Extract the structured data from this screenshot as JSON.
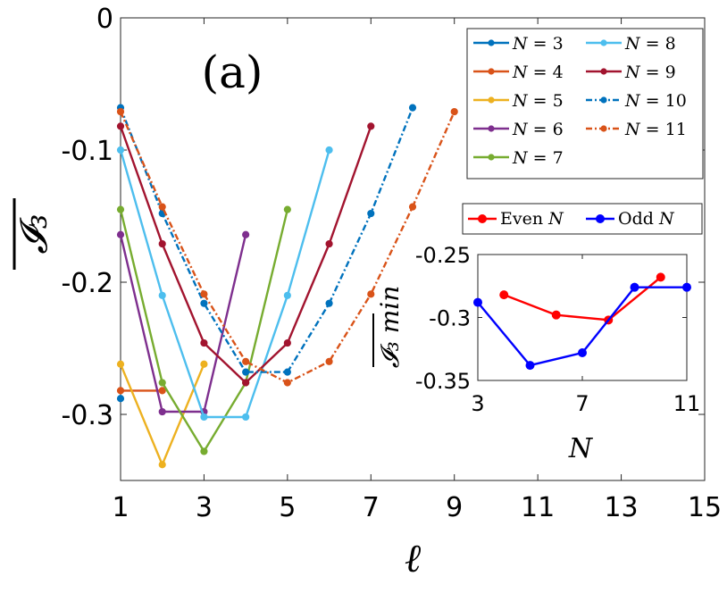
{
  "chart_data": [
    {
      "type": "line",
      "panel_label": "(a)",
      "xlabel": "ℓ",
      "ylabel": "𝓘₃",
      "xlim": [
        1,
        15
      ],
      "ylim": [
        -0.35,
        0
      ],
      "xticks": [
        1,
        3,
        5,
        7,
        9,
        11,
        13,
        15
      ],
      "xtick_labels": [
        "1",
        "3",
        "5",
        "7",
        "9",
        "11",
        "13",
        "15"
      ],
      "yticks": [
        0,
        -0.1,
        -0.2,
        -0.3
      ],
      "ytick_labels": [
        "0",
        "-0.1",
        "-0.2",
        "-0.3"
      ],
      "series": [
        {
          "name": "N = 3",
          "var": "N",
          "val": "3",
          "color": "#0072BD",
          "style": "solid",
          "x": [
            1
          ],
          "y": [
            -0.288
          ]
        },
        {
          "name": "N = 4",
          "var": "N",
          "val": "4",
          "color": "#D95319",
          "style": "solid",
          "x": [
            1,
            2
          ],
          "y": [
            -0.282,
            -0.282
          ]
        },
        {
          "name": "N = 5",
          "var": "N",
          "val": "5",
          "color": "#EDB120",
          "style": "solid",
          "x": [
            1,
            2,
            3
          ],
          "y": [
            -0.262,
            -0.338,
            -0.262
          ]
        },
        {
          "name": "N = 6",
          "var": "N",
          "val": "6",
          "color": "#7E2F8E",
          "style": "solid",
          "x": [
            1,
            2,
            3,
            4
          ],
          "y": [
            -0.164,
            -0.298,
            -0.298,
            -0.164
          ]
        },
        {
          "name": "N = 7",
          "var": "N",
          "val": "7",
          "color": "#77AC30",
          "style": "solid",
          "x": [
            1,
            2,
            3,
            4,
            5
          ],
          "y": [
            -0.145,
            -0.276,
            -0.328,
            -0.276,
            -0.145
          ]
        },
        {
          "name": "N = 8",
          "var": "N",
          "val": "8",
          "color": "#4DBEEE",
          "style": "solid",
          "x": [
            1,
            2,
            3,
            4,
            5,
            6
          ],
          "y": [
            -0.1,
            -0.21,
            -0.302,
            -0.302,
            -0.21,
            -0.1
          ]
        },
        {
          "name": "N = 9",
          "var": "N",
          "val": "9",
          "color": "#A2142F",
          "style": "solid",
          "x": [
            1,
            2,
            3,
            4,
            5,
            6,
            7
          ],
          "y": [
            -0.082,
            -0.171,
            -0.246,
            -0.276,
            -0.246,
            -0.171,
            -0.082
          ]
        },
        {
          "name": "N = 10",
          "var": "N",
          "val": "10",
          "color": "#0072BD",
          "style": "dashdot",
          "x": [
            1,
            2,
            3,
            4,
            5,
            6,
            7,
            8
          ],
          "y": [
            -0.068,
            -0.148,
            -0.216,
            -0.268,
            -0.268,
            -0.216,
            -0.148,
            -0.068
          ]
        },
        {
          "name": "N = 11",
          "var": "N",
          "val": "11",
          "color": "#D95319",
          "style": "dashdot",
          "x": [
            1,
            2,
            3,
            4,
            5,
            6,
            7,
            8,
            9
          ],
          "y": [
            -0.071,
            -0.143,
            -0.209,
            -0.26,
            -0.276,
            -0.26,
            -0.209,
            -0.143,
            -0.071
          ]
        }
      ]
    },
    {
      "type": "line",
      "role": "inset",
      "xlabel": "N",
      "ylabel": "𝓘₃ min",
      "xlim": [
        3,
        11
      ],
      "ylim": [
        -0.35,
        -0.25
      ],
      "xticks": [
        3,
        7,
        11
      ],
      "xtick_labels": [
        "3",
        "7",
        "11"
      ],
      "yticks": [
        -0.25,
        -0.3,
        -0.35
      ],
      "ytick_labels": [
        "-0.25",
        "-0.3",
        "-0.35"
      ],
      "series": [
        {
          "name": "Even N",
          "label_text": "Even ",
          "var": "N",
          "color": "#FF0000",
          "x": [
            4,
            6,
            8,
            10
          ],
          "y": [
            -0.282,
            -0.298,
            -0.302,
            -0.268
          ]
        },
        {
          "name": "Odd N",
          "label_text": "Odd ",
          "var": "N",
          "color": "#0000FF",
          "x": [
            3,
            5,
            7,
            9,
            11
          ],
          "y": [
            -0.288,
            -0.338,
            -0.328,
            -0.276,
            -0.276
          ]
        }
      ]
    }
  ]
}
